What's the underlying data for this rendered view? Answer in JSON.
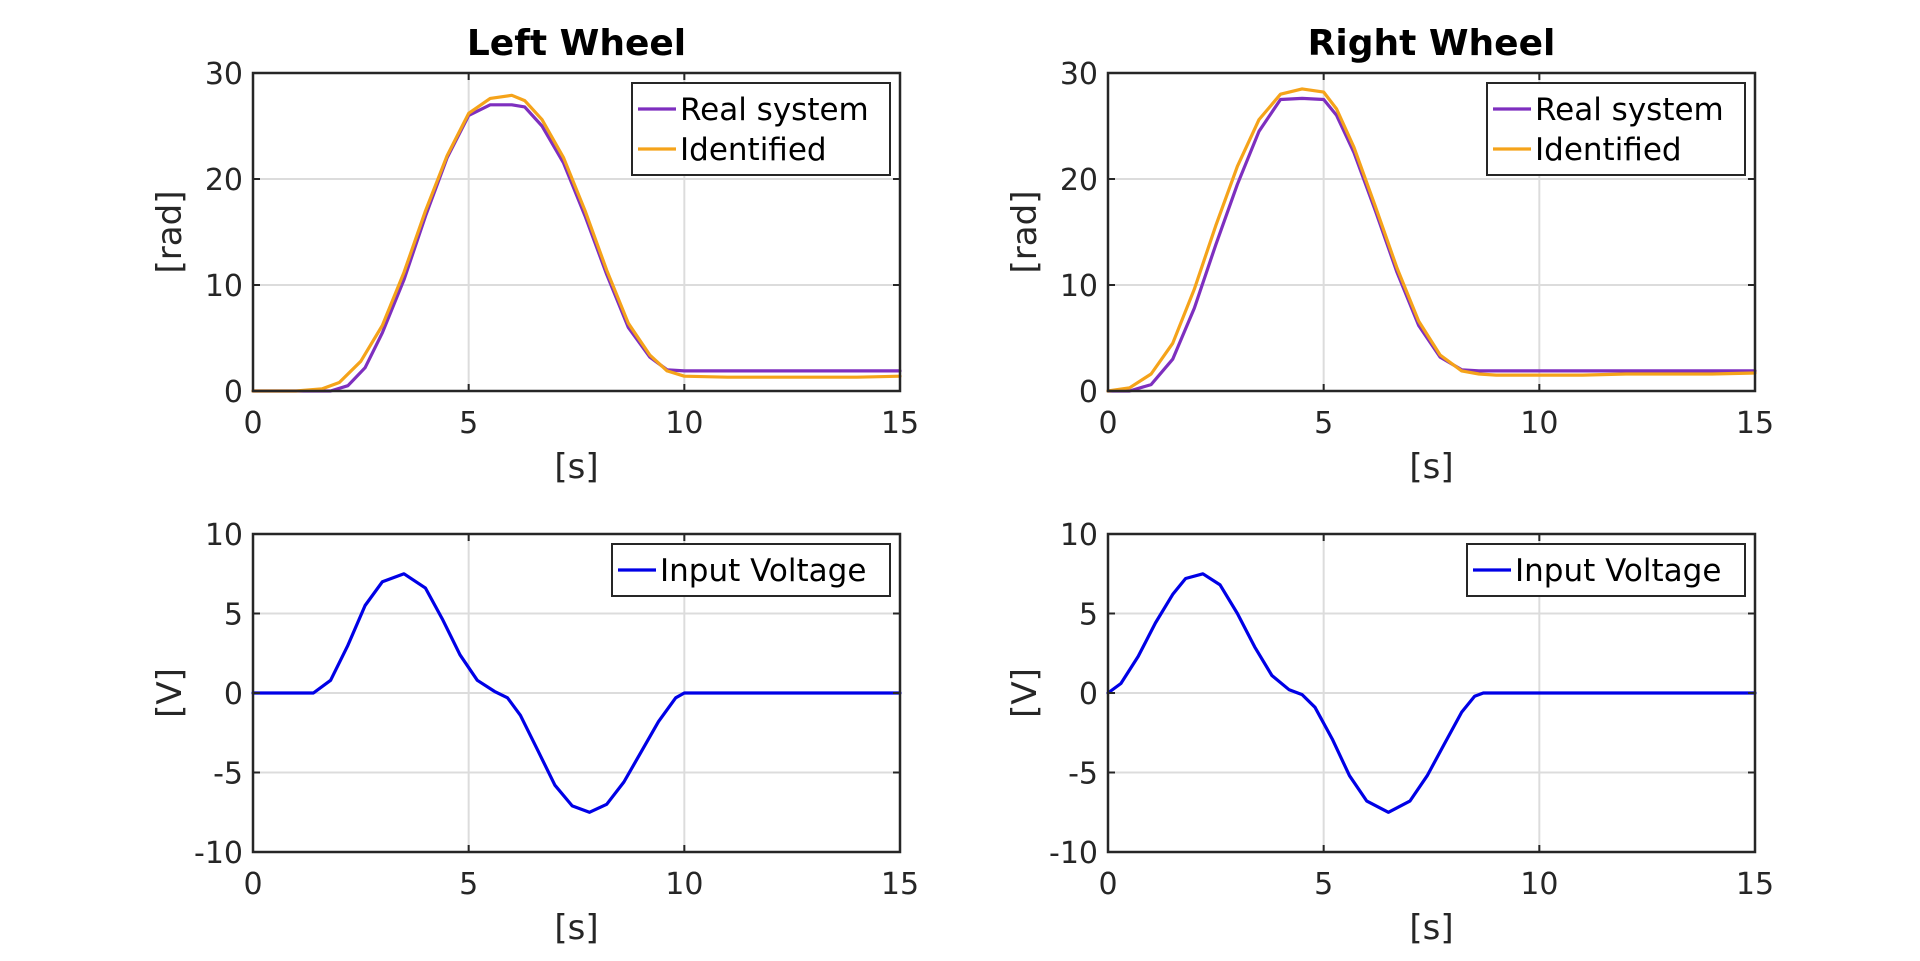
{
  "chart_data": [
    {
      "type": "line",
      "title": "Left Wheel",
      "xlabel": "[s]",
      "ylabel": "[rad]",
      "xlim": [
        0,
        15
      ],
      "ylim": [
        0,
        30
      ],
      "xticks": [
        0,
        5,
        10,
        15
      ],
      "yticks": [
        0,
        10,
        20,
        30
      ],
      "xtick_labels": [
        "0",
        "5",
        "10",
        "15"
      ],
      "ytick_labels": [
        "0",
        "10",
        "20",
        "30"
      ],
      "grid": true,
      "legend_position": "top-right",
      "series": [
        {
          "name": "Real system",
          "color": "#7e2fbf",
          "x": [
            0,
            1,
            1.8,
            2.2,
            2.6,
            3.0,
            3.5,
            4.0,
            4.5,
            5.0,
            5.5,
            6.0,
            6.3,
            6.7,
            7.2,
            7.7,
            8.2,
            8.7,
            9.2,
            9.6,
            10.0,
            11,
            12,
            13,
            14,
            15
          ],
          "y": [
            0,
            0,
            0,
            0.5,
            2.2,
            5.5,
            10.5,
            16.5,
            22.0,
            26.0,
            27.0,
            27.0,
            26.8,
            25.0,
            21.5,
            16.5,
            11.0,
            6.0,
            3.2,
            2.0,
            1.9,
            1.9,
            1.9,
            1.9,
            1.9,
            1.9
          ]
        },
        {
          "name": "Identified",
          "color": "#f5a31a",
          "x": [
            0,
            1,
            1.6,
            2.0,
            2.5,
            3.0,
            3.5,
            4.0,
            4.5,
            5.0,
            5.5,
            6.0,
            6.3,
            6.7,
            7.2,
            7.7,
            8.2,
            8.7,
            9.2,
            9.6,
            10.0,
            11,
            12,
            13,
            14,
            15
          ],
          "y": [
            0,
            0,
            0.2,
            0.8,
            2.8,
            6.2,
            11.2,
            17.0,
            22.2,
            26.2,
            27.6,
            27.9,
            27.4,
            25.6,
            22.0,
            17.0,
            11.4,
            6.4,
            3.4,
            1.9,
            1.4,
            1.3,
            1.3,
            1.3,
            1.3,
            1.4
          ]
        }
      ]
    },
    {
      "type": "line",
      "title": "Right Wheel",
      "xlabel": "[s]",
      "ylabel": "[rad]",
      "xlim": [
        0,
        15
      ],
      "ylim": [
        0,
        30
      ],
      "xticks": [
        0,
        5,
        10,
        15
      ],
      "yticks": [
        0,
        10,
        20,
        30
      ],
      "xtick_labels": [
        "0",
        "5",
        "10",
        "15"
      ],
      "ytick_labels": [
        "0",
        "10",
        "20",
        "30"
      ],
      "grid": true,
      "legend_position": "top-right",
      "series": [
        {
          "name": "Real system",
          "color": "#7e2fbf",
          "x": [
            0,
            0.5,
            1.0,
            1.5,
            2.0,
            2.5,
            3.0,
            3.5,
            4.0,
            4.5,
            5.0,
            5.3,
            5.7,
            6.2,
            6.7,
            7.2,
            7.7,
            8.2,
            8.6,
            9.0,
            10,
            11,
            12,
            13,
            14,
            15
          ],
          "y": [
            0,
            0,
            0.6,
            3.0,
            7.8,
            13.8,
            19.5,
            24.5,
            27.5,
            27.6,
            27.5,
            26.0,
            22.5,
            17.0,
            11.2,
            6.2,
            3.2,
            2.0,
            1.9,
            1.9,
            1.9,
            1.9,
            1.9,
            1.9,
            1.9,
            1.9
          ]
        },
        {
          "name": "Identified",
          "color": "#f5a31a",
          "x": [
            0,
            0.5,
            1.0,
            1.5,
            2.0,
            2.5,
            3.0,
            3.5,
            4.0,
            4.5,
            5.0,
            5.3,
            5.7,
            6.2,
            6.7,
            7.2,
            7.7,
            8.2,
            8.6,
            9.0,
            10,
            11,
            12,
            13,
            14,
            15
          ],
          "y": [
            0,
            0.3,
            1.6,
            4.5,
            9.6,
            15.6,
            21.2,
            25.6,
            28.0,
            28.5,
            28.2,
            26.6,
            23.0,
            17.4,
            11.6,
            6.6,
            3.4,
            1.9,
            1.6,
            1.5,
            1.5,
            1.5,
            1.6,
            1.6,
            1.6,
            1.7
          ]
        }
      ]
    },
    {
      "type": "line",
      "title": "",
      "xlabel": "[s]",
      "ylabel": "[V]",
      "xlim": [
        0,
        15
      ],
      "ylim": [
        -10,
        10
      ],
      "xticks": [
        0,
        5,
        10,
        15
      ],
      "yticks": [
        -10,
        -5,
        0,
        5,
        10
      ],
      "xtick_labels": [
        "0",
        "5",
        "10",
        "15"
      ],
      "ytick_labels": [
        "-10",
        "-5",
        "0",
        "5",
        "10"
      ],
      "grid": true,
      "legend_position": "top-right",
      "series": [
        {
          "name": "Input Voltage",
          "color": "#0000e6",
          "x": [
            0,
            1.4,
            1.8,
            2.2,
            2.6,
            3.0,
            3.5,
            4.0,
            4.4,
            4.8,
            5.2,
            5.6,
            5.9,
            6.2,
            6.6,
            7.0,
            7.4,
            7.8,
            8.2,
            8.6,
            9.0,
            9.4,
            9.8,
            10.0,
            11,
            12,
            13,
            14,
            15
          ],
          "y": [
            0,
            0,
            0.8,
            3.0,
            5.5,
            7.0,
            7.5,
            6.6,
            4.6,
            2.4,
            0.8,
            0.1,
            -0.3,
            -1.4,
            -3.6,
            -5.8,
            -7.1,
            -7.5,
            -7.0,
            -5.6,
            -3.7,
            -1.8,
            -0.3,
            0,
            0,
            0,
            0,
            0,
            0
          ]
        }
      ]
    },
    {
      "type": "line",
      "title": "",
      "xlabel": "[s]",
      "ylabel": "[V]",
      "xlim": [
        0,
        15
      ],
      "ylim": [
        -10,
        10
      ],
      "xticks": [
        0,
        5,
        10,
        15
      ],
      "yticks": [
        -10,
        -5,
        0,
        5,
        10
      ],
      "xtick_labels": [
        "0",
        "5",
        "10",
        "15"
      ],
      "ytick_labels": [
        "-10",
        "-5",
        "0",
        "5",
        "10"
      ],
      "grid": true,
      "legend_position": "top-right",
      "series": [
        {
          "name": "Input Voltage",
          "color": "#0000e6",
          "x": [
            0,
            0.3,
            0.7,
            1.1,
            1.5,
            1.8,
            2.2,
            2.6,
            3.0,
            3.4,
            3.8,
            4.2,
            4.5,
            4.8,
            5.2,
            5.6,
            6.0,
            6.5,
            7.0,
            7.4,
            7.8,
            8.2,
            8.5,
            8.7,
            10,
            11,
            12,
            13,
            14,
            15
          ],
          "y": [
            0,
            0.6,
            2.3,
            4.4,
            6.2,
            7.2,
            7.5,
            6.8,
            5.0,
            2.9,
            1.1,
            0.2,
            -0.1,
            -0.9,
            -2.9,
            -5.2,
            -6.8,
            -7.5,
            -6.8,
            -5.2,
            -3.2,
            -1.2,
            -0.2,
            0,
            0,
            0,
            0,
            0,
            0,
            0
          ]
        }
      ]
    }
  ]
}
